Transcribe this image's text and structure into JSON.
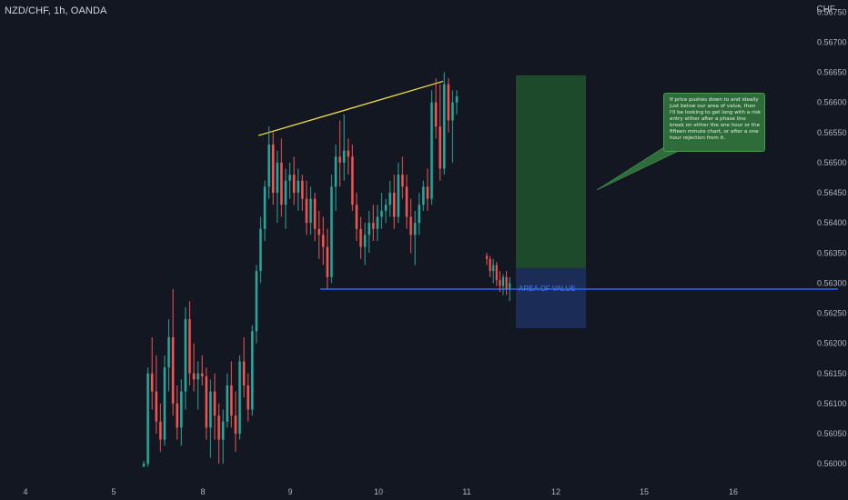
{
  "header": {
    "symbol": "NZD/CHF, 1h, OANDA",
    "currency": "CHF"
  },
  "annotations": {
    "note": "If price pushes down to and ideally just below our area of value, then I'll be looking to get long with a risk entry either after a phase line break on either the one hour or the fifteen minute chart, or after a one hour rejection from it.",
    "zone_label": "AREA OF VALUE"
  },
  "colors": {
    "background": "#131722",
    "bull": "#26a69a",
    "bear": "#ef5350",
    "trendline": "#f7e44a",
    "support_line": "#2962ff",
    "profit_zone": "#1e4a2c",
    "stop_zone": "#1b2c56",
    "note_bg": "#2e6d3a"
  },
  "chart_data": {
    "type": "candlestick",
    "y_axis": {
      "range": [
        0.5597,
        0.5677
      ],
      "ticks": [
        "0.56750",
        "0.56700",
        "0.56650",
        "0.56600",
        "0.56550",
        "0.56500",
        "0.56450",
        "0.56400",
        "0.56350",
        "0.56300",
        "0.56250",
        "0.56200",
        "0.56150",
        "0.56100",
        "0.56050",
        "0.56000"
      ]
    },
    "x_axis": {
      "ticks": [
        "4",
        "5",
        "8",
        "9",
        "10",
        "11",
        "12",
        "15",
        "16"
      ]
    },
    "candles": [
      [
        0.55995,
        0.56005,
        0.55995,
        0.56
      ],
      [
        0.56,
        0.5616,
        0.55995,
        0.5615
      ],
      [
        0.5615,
        0.5621,
        0.5609,
        0.5612
      ],
      [
        0.5612,
        0.5618,
        0.5605,
        0.5607
      ],
      [
        0.5607,
        0.561,
        0.5602,
        0.5604
      ],
      [
        0.5604,
        0.5618,
        0.5603,
        0.5616
      ],
      [
        0.5616,
        0.5624,
        0.5612,
        0.5621
      ],
      [
        0.5621,
        0.5629,
        0.5608,
        0.561
      ],
      [
        0.561,
        0.5613,
        0.5604,
        0.5606
      ],
      [
        0.5606,
        0.5614,
        0.5603,
        0.5612
      ],
      [
        0.5612,
        0.5626,
        0.5609,
        0.5624
      ],
      [
        0.5624,
        0.5627,
        0.5613,
        0.5615
      ],
      [
        0.5615,
        0.562,
        0.5612,
        0.5614
      ],
      [
        0.5614,
        0.5617,
        0.5609,
        0.5615
      ],
      [
        0.5615,
        0.5618,
        0.5613,
        0.56145
      ],
      [
        0.56145,
        0.5616,
        0.5604,
        0.5606
      ],
      [
        0.5606,
        0.5614,
        0.5601,
        0.5612
      ],
      [
        0.5612,
        0.5615,
        0.5604,
        0.5608
      ],
      [
        0.5608,
        0.561,
        0.56,
        0.5604
      ],
      [
        0.5604,
        0.5609,
        0.56,
        0.5607
      ],
      [
        0.5607,
        0.5615,
        0.5606,
        0.5613
      ],
      [
        0.5613,
        0.5617,
        0.5606,
        0.5608
      ],
      [
        0.5608,
        0.5612,
        0.5602,
        0.5605
      ],
      [
        0.5605,
        0.5618,
        0.5604,
        0.5617
      ],
      [
        0.5617,
        0.5621,
        0.5611,
        0.5613
      ],
      [
        0.5613,
        0.5615,
        0.5607,
        0.5609
      ],
      [
        0.5609,
        0.5623,
        0.5608,
        0.5622
      ],
      [
        0.5622,
        0.5633,
        0.562,
        0.5632
      ],
      [
        0.5632,
        0.5641,
        0.563,
        0.5639
      ],
      [
        0.5639,
        0.5647,
        0.5637,
        0.5646
      ],
      [
        0.5646,
        0.5656,
        0.5644,
        0.5653
      ],
      [
        0.5653,
        0.5655,
        0.5643,
        0.5645
      ],
      [
        0.5645,
        0.5652,
        0.564,
        0.565
      ],
      [
        0.565,
        0.5654,
        0.5641,
        0.5643
      ],
      [
        0.5643,
        0.5649,
        0.5639,
        0.5647
      ],
      [
        0.5647,
        0.565,
        0.5644,
        0.5648
      ],
      [
        0.5648,
        0.5651,
        0.5643,
        0.5645
      ],
      [
        0.5645,
        0.5649,
        0.5642,
        0.5647
      ],
      [
        0.5647,
        0.5648,
        0.5642,
        0.5644
      ],
      [
        0.5644,
        0.5647,
        0.5638,
        0.564
      ],
      [
        0.564,
        0.5646,
        0.5638,
        0.5644
      ],
      [
        0.5644,
        0.5645,
        0.5637,
        0.5639
      ],
      [
        0.5639,
        0.5642,
        0.5634,
        0.5638
      ],
      [
        0.5638,
        0.5641,
        0.5633,
        0.5636
      ],
      [
        0.5636,
        0.5639,
        0.5629,
        0.5631
      ],
      [
        0.5631,
        0.5648,
        0.563,
        0.5646
      ],
      [
        0.5646,
        0.5653,
        0.5642,
        0.5651
      ],
      [
        0.5651,
        0.5657,
        0.5646,
        0.565
      ],
      [
        0.565,
        0.5658,
        0.5647,
        0.5652
      ],
      [
        0.5652,
        0.5654,
        0.5648,
        0.5651
      ],
      [
        0.5651,
        0.5653,
        0.5642,
        0.5643
      ],
      [
        0.5643,
        0.5645,
        0.5637,
        0.5639
      ],
      [
        0.5639,
        0.5641,
        0.5634,
        0.5636
      ],
      [
        0.5636,
        0.564,
        0.5633,
        0.5638
      ],
      [
        0.5638,
        0.5642,
        0.5635,
        0.564
      ],
      [
        0.564,
        0.5643,
        0.5637,
        0.5639
      ],
      [
        0.5639,
        0.5643,
        0.5637,
        0.5641
      ],
      [
        0.5641,
        0.5645,
        0.5639,
        0.5642
      ],
      [
        0.5642,
        0.5644,
        0.564,
        0.5643
      ],
      [
        0.5643,
        0.5647,
        0.5641,
        0.5645
      ],
      [
        0.5645,
        0.5648,
        0.5639,
        0.5641
      ],
      [
        0.5641,
        0.565,
        0.564,
        0.5648
      ],
      [
        0.5648,
        0.5651,
        0.5644,
        0.5646
      ],
      [
        0.5646,
        0.5648,
        0.5639,
        0.5641
      ],
      [
        0.5641,
        0.5644,
        0.5635,
        0.5638
      ],
      [
        0.5638,
        0.5642,
        0.5633,
        0.564
      ],
      [
        0.564,
        0.5645,
        0.5638,
        0.5643
      ],
      [
        0.5643,
        0.5647,
        0.5642,
        0.5646
      ],
      [
        0.5646,
        0.5649,
        0.5642,
        0.5644
      ],
      [
        0.5644,
        0.5662,
        0.5643,
        0.566
      ],
      [
        0.566,
        0.5664,
        0.5654,
        0.5656
      ],
      [
        0.5656,
        0.5663,
        0.5647,
        0.5649
      ],
      [
        0.5649,
        0.5665,
        0.5648,
        0.5663
      ],
      [
        0.5663,
        0.5664,
        0.5655,
        0.5657
      ],
      [
        0.5657,
        0.5662,
        0.565,
        0.566
      ],
      [
        0.566,
        0.5662,
        0.5658,
        0.5661
      ]
    ],
    "gap_candles": [
      [
        0.56345,
        0.5635,
        0.5633,
        0.5634
      ],
      [
        0.5634,
        0.56345,
        0.5631,
        0.5632
      ],
      [
        0.5632,
        0.5634,
        0.563,
        0.5633
      ],
      [
        0.5633,
        0.56335,
        0.56295,
        0.56305
      ],
      [
        0.56305,
        0.5632,
        0.56285,
        0.56295
      ],
      [
        0.56295,
        0.56315,
        0.5628,
        0.5631
      ],
      [
        0.5631,
        0.5632,
        0.5628,
        0.5629
      ],
      [
        0.5629,
        0.5631,
        0.5627,
        0.563
      ]
    ],
    "trendline": [
      0.56545,
      0.56635
    ],
    "support_level": 0.5629,
    "position": {
      "target": 0.56645,
      "entry": 0.56325,
      "stop": 0.56225
    }
  }
}
